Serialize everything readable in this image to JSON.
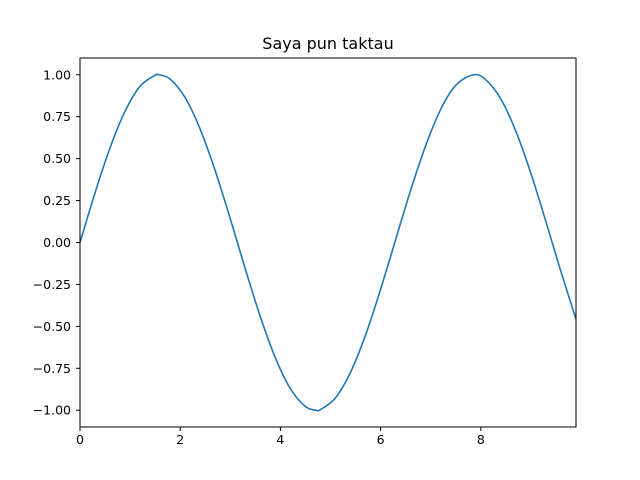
{
  "chart_data": {
    "type": "line",
    "title": "Saya pun taktau",
    "xlabel": "",
    "ylabel": "",
    "xlim": [
      0,
      9.9
    ],
    "ylim": [
      -1.1,
      1.1
    ],
    "x_ticks": [
      0,
      2,
      4,
      6,
      8
    ],
    "x_tick_labels": [
      "0",
      "2",
      "4",
      "6",
      "8"
    ],
    "y_ticks": [
      -1.0,
      -0.75,
      -0.5,
      -0.25,
      0.0,
      0.25,
      0.5,
      0.75,
      1.0
    ],
    "y_tick_labels": [
      "−1.00",
      "−0.75",
      "−0.50",
      "−0.25",
      "0.00",
      "0.25",
      "0.50",
      "0.75",
      "1.00"
    ],
    "grid": false,
    "series": [
      {
        "color": "#1f77b4",
        "x": [
          0.0,
          0.3,
          0.6,
          0.9,
          1.2,
          1.5,
          1.571,
          1.8,
          2.1,
          2.4,
          2.7,
          3.0,
          3.142,
          3.3,
          3.6,
          3.9,
          4.2,
          4.5,
          4.712,
          4.8,
          5.1,
          5.4,
          5.7,
          6.0,
          6.283,
          6.3,
          6.6,
          6.9,
          7.2,
          7.5,
          7.854,
          8.1,
          8.4,
          8.7,
          9.0,
          9.3,
          9.6,
          9.9
        ],
        "y": [
          0.0,
          0.296,
          0.565,
          0.783,
          0.932,
          0.997,
          1.0,
          0.974,
          0.863,
          0.675,
          0.427,
          0.141,
          0.0,
          -0.158,
          -0.443,
          -0.688,
          -0.872,
          -0.978,
          -1.0,
          -0.996,
          -0.926,
          -0.773,
          -0.551,
          -0.279,
          0.0,
          0.017,
          0.312,
          0.578,
          0.794,
          0.938,
          1.0,
          0.97,
          0.855,
          0.663,
          0.412,
          0.124,
          -0.174,
          -0.457
        ]
      }
    ]
  }
}
